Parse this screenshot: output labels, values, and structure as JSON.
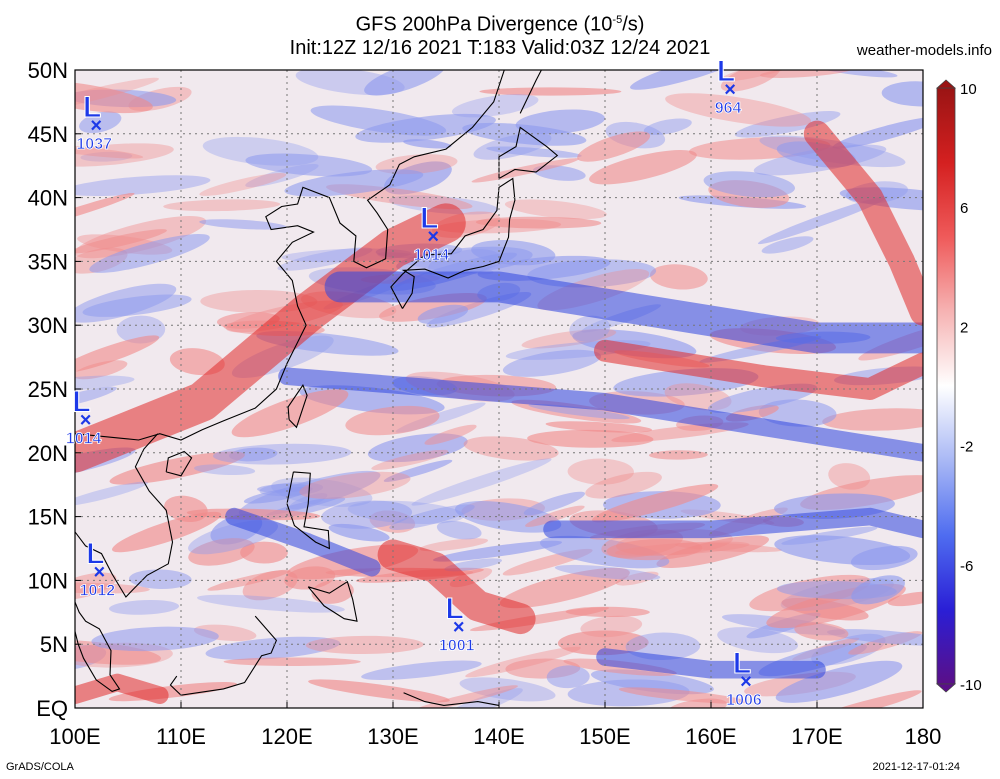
{
  "title": {
    "line1_main": "GFS 200hPa Divergence (10",
    "line1_exp": "-5",
    "line1_unit": "/s)",
    "line2": "Init:12Z 12/16 2021 T:183 Valid:03Z 12/24 2021"
  },
  "site": "weather-models.info",
  "footer": {
    "left": "GrADS/COLA",
    "right": "2021-12-17-01:24"
  },
  "axes": {
    "lat_labels": [
      "50N",
      "45N",
      "40N",
      "35N",
      "30N",
      "25N",
      "20N",
      "15N",
      "10N",
      "5N",
      "EQ"
    ],
    "lon_labels": [
      "100E",
      "110E",
      "120E",
      "130E",
      "140E",
      "150E",
      "160E",
      "170E",
      "180"
    ]
  },
  "colorbar": {
    "labels": [
      "10",
      "6",
      "2",
      "-2",
      "-6",
      "-10"
    ],
    "colors": [
      "#5a0f88",
      "#2a1fd6",
      "#4f6df0",
      "#a9b8f5",
      "#ffffff",
      "#f6b3b3",
      "#ef5a5a",
      "#d42020",
      "#9a1414"
    ]
  },
  "lows": [
    {
      "label": "L",
      "value": "1037",
      "lon": 102,
      "lat": 45.7
    },
    {
      "label": "L",
      "value": "964",
      "lon": 161.8,
      "lat": 48.5
    },
    {
      "label": "L",
      "value": "1014",
      "lon": 133.8,
      "lat": 37.0
    },
    {
      "label": "L",
      "value": "1014",
      "lon": 101.0,
      "lat": 22.6
    },
    {
      "label": "L",
      "value": "1012",
      "lon": 102.3,
      "lat": 10.7
    },
    {
      "label": "L",
      "value": "1001",
      "lon": 136.2,
      "lat": 6.4
    },
    {
      "label": "L",
      "value": "1006",
      "lon": 163.3,
      "lat": 2.1
    }
  ],
  "map": {
    "lon_range": [
      100,
      180
    ],
    "lat_range": [
      0,
      50
    ],
    "positive_color": "#e23a3a",
    "negative_color": "#3a4fe0"
  }
}
